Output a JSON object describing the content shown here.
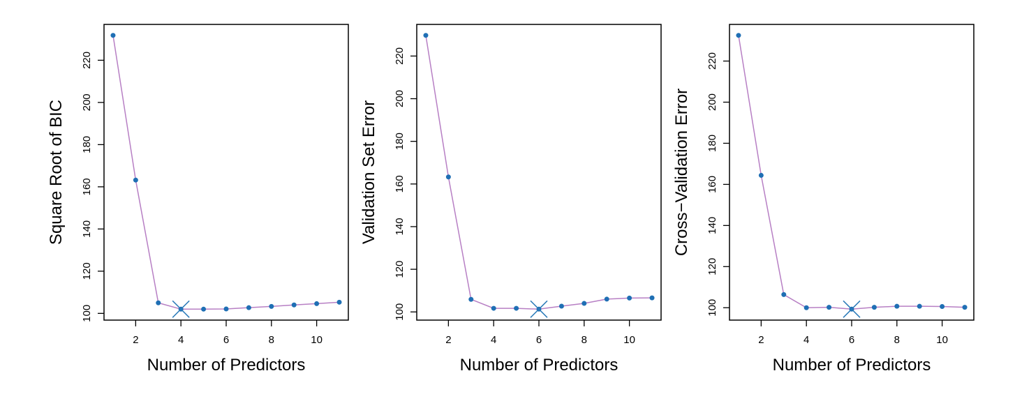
{
  "chart_data": [
    {
      "type": "line",
      "title": "",
      "xlabel": "Number of Predictors",
      "ylabel": "Square Root of BIC",
      "x": [
        1,
        2,
        3,
        4,
        5,
        6,
        7,
        8,
        9,
        10,
        11
      ],
      "values": [
        231.8,
        163.2,
        105.0,
        102.0,
        102.0,
        102.1,
        102.7,
        103.3,
        104.0,
        104.6,
        105.3
      ],
      "best_x": 4,
      "xticks": [
        2,
        4,
        6,
        8,
        10
      ],
      "yticks": [
        100,
        120,
        140,
        160,
        180,
        200,
        220
      ],
      "xlim": [
        1,
        11
      ],
      "grid": false
    },
    {
      "type": "line",
      "title": "",
      "xlabel": "Number of Predictors",
      "ylabel": "Validation Set Error",
      "x": [
        1,
        2,
        3,
        4,
        5,
        6,
        7,
        8,
        9,
        10,
        11
      ],
      "values": [
        229.7,
        163.3,
        105.9,
        101.7,
        101.7,
        101.3,
        102.7,
        104.0,
        106.0,
        106.5,
        106.6
      ],
      "best_x": 6,
      "xticks": [
        2,
        4,
        6,
        8,
        10
      ],
      "yticks": [
        100,
        120,
        140,
        160,
        180,
        200,
        220
      ],
      "xlim": [
        1,
        11
      ],
      "grid": false
    },
    {
      "type": "line",
      "title": "",
      "xlabel": "Number of Predictors",
      "ylabel": "Cross−Validation Error",
      "x": [
        1,
        2,
        3,
        4,
        5,
        6,
        7,
        8,
        9,
        10,
        11
      ],
      "values": [
        232.5,
        164.4,
        106.4,
        100.0,
        100.2,
        99.3,
        100.2,
        100.7,
        100.7,
        100.6,
        100.2
      ],
      "best_x": 6,
      "xticks": [
        2,
        4,
        6,
        8,
        10
      ],
      "yticks": [
        100,
        120,
        140,
        160,
        180,
        200,
        220
      ],
      "xlim": [
        1,
        11
      ],
      "grid": false
    }
  ],
  "colors": {
    "line": "#b77fc4",
    "point": "#1f6fb4",
    "marker": "#2a7ab8"
  }
}
